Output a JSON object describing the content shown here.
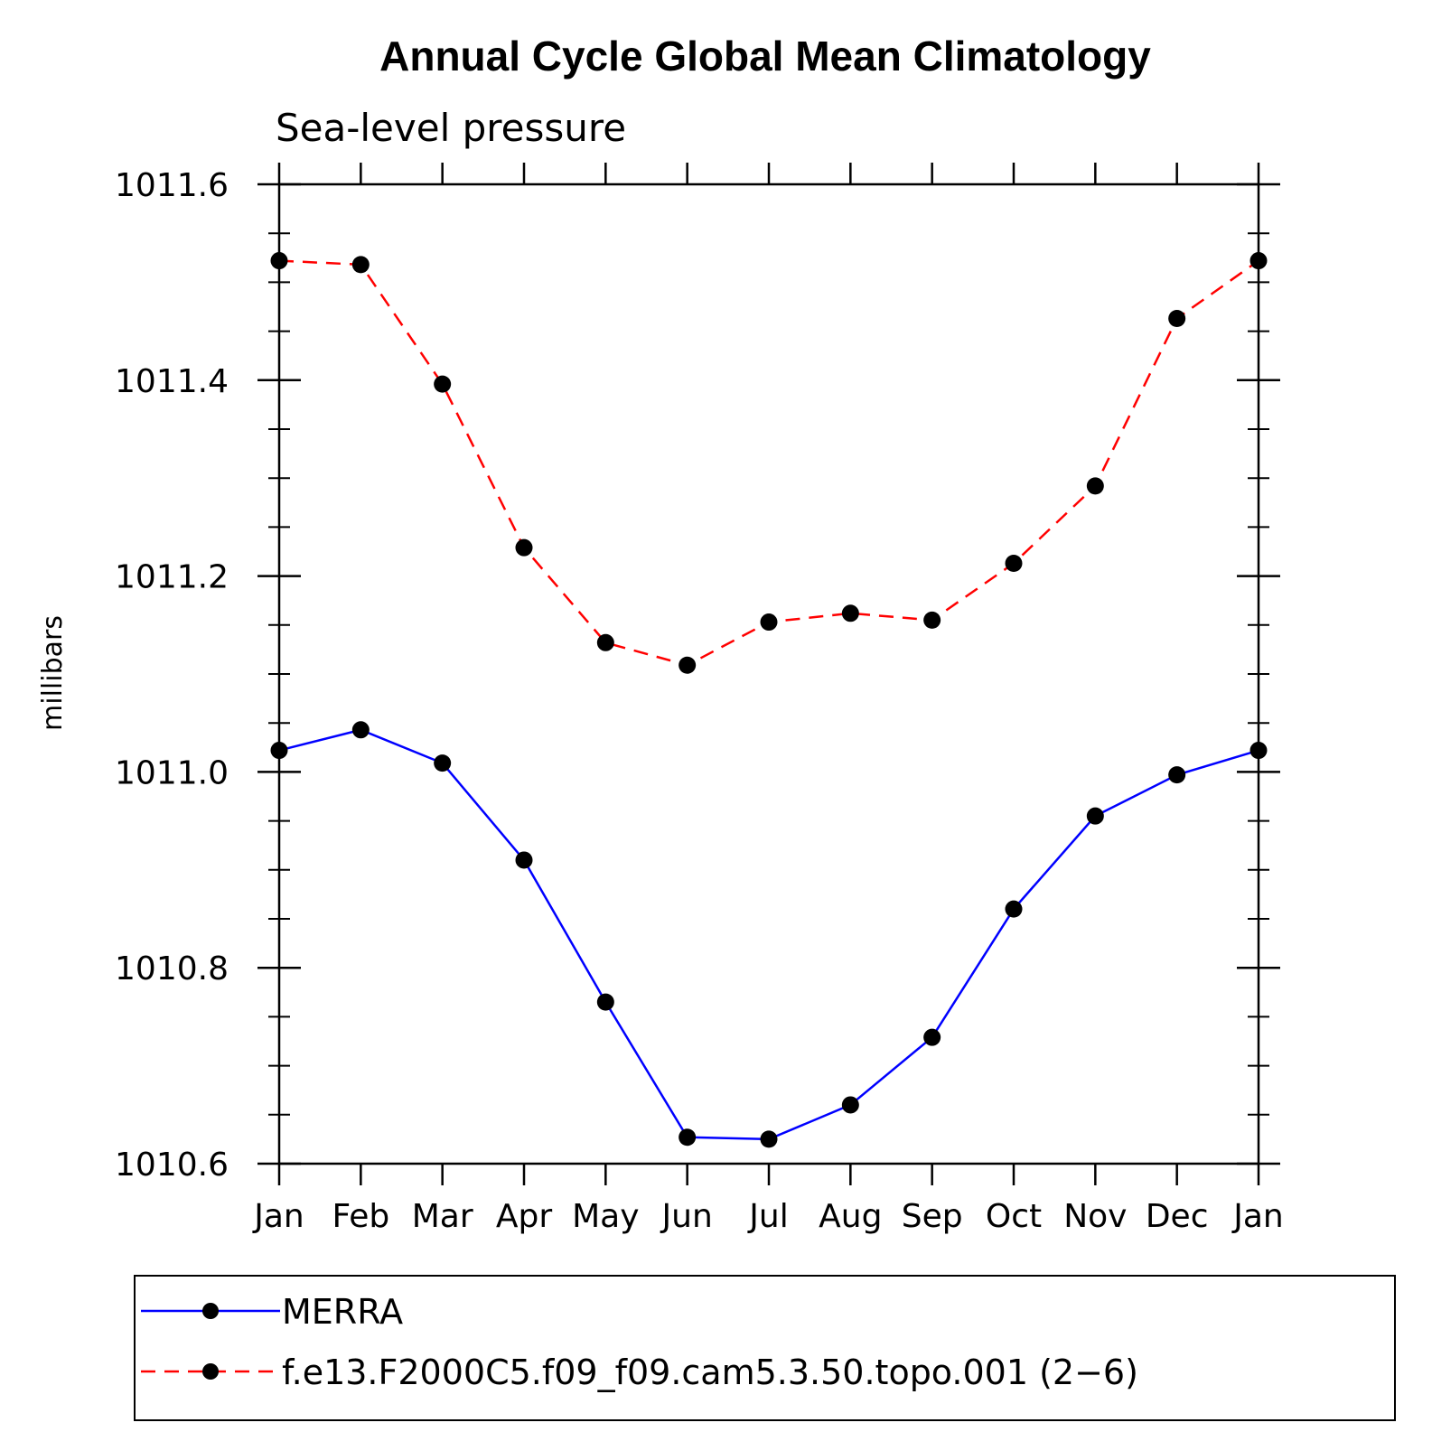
{
  "chart_data": {
    "type": "line",
    "title": "Annual Cycle Global Mean Climatology",
    "subtitle": "Sea-level pressure",
    "xlabel": "",
    "ylabel": "millibars",
    "categories": [
      "Jan",
      "Feb",
      "Mar",
      "Apr",
      "May",
      "Jun",
      "Jul",
      "Aug",
      "Sep",
      "Oct",
      "Nov",
      "Dec",
      "Jan"
    ],
    "ylim": [
      1010.6,
      1011.6
    ],
    "yticks": [
      "1010.6",
      "1010.8",
      "1011.0",
      "1011.2",
      "1011.4",
      "1011.6"
    ],
    "ytick_values": [
      1010.6,
      1010.8,
      1011.0,
      1011.2,
      1011.4,
      1011.6
    ],
    "series": [
      {
        "name": "MERRA",
        "color": "#0000ff",
        "dashed": false,
        "marker": "filled-circle",
        "values": [
          1011.022,
          1011.043,
          1011.009,
          1010.91,
          1010.765,
          1010.627,
          1010.625,
          1010.66,
          1010.729,
          1010.86,
          1010.955,
          1010.997,
          1011.022
        ]
      },
      {
        "name": "f.e13.F2000C5.f09_f09.cam5.3.50.topo.001 (2−6)",
        "color": "#ff0000",
        "dashed": true,
        "marker": "filled-circle",
        "values": [
          1011.522,
          1011.518,
          1011.396,
          1011.229,
          1011.132,
          1011.109,
          1011.153,
          1011.162,
          1011.155,
          1011.213,
          1011.292,
          1011.463,
          1011.522
        ]
      }
    ],
    "legend_position": "bottom"
  }
}
